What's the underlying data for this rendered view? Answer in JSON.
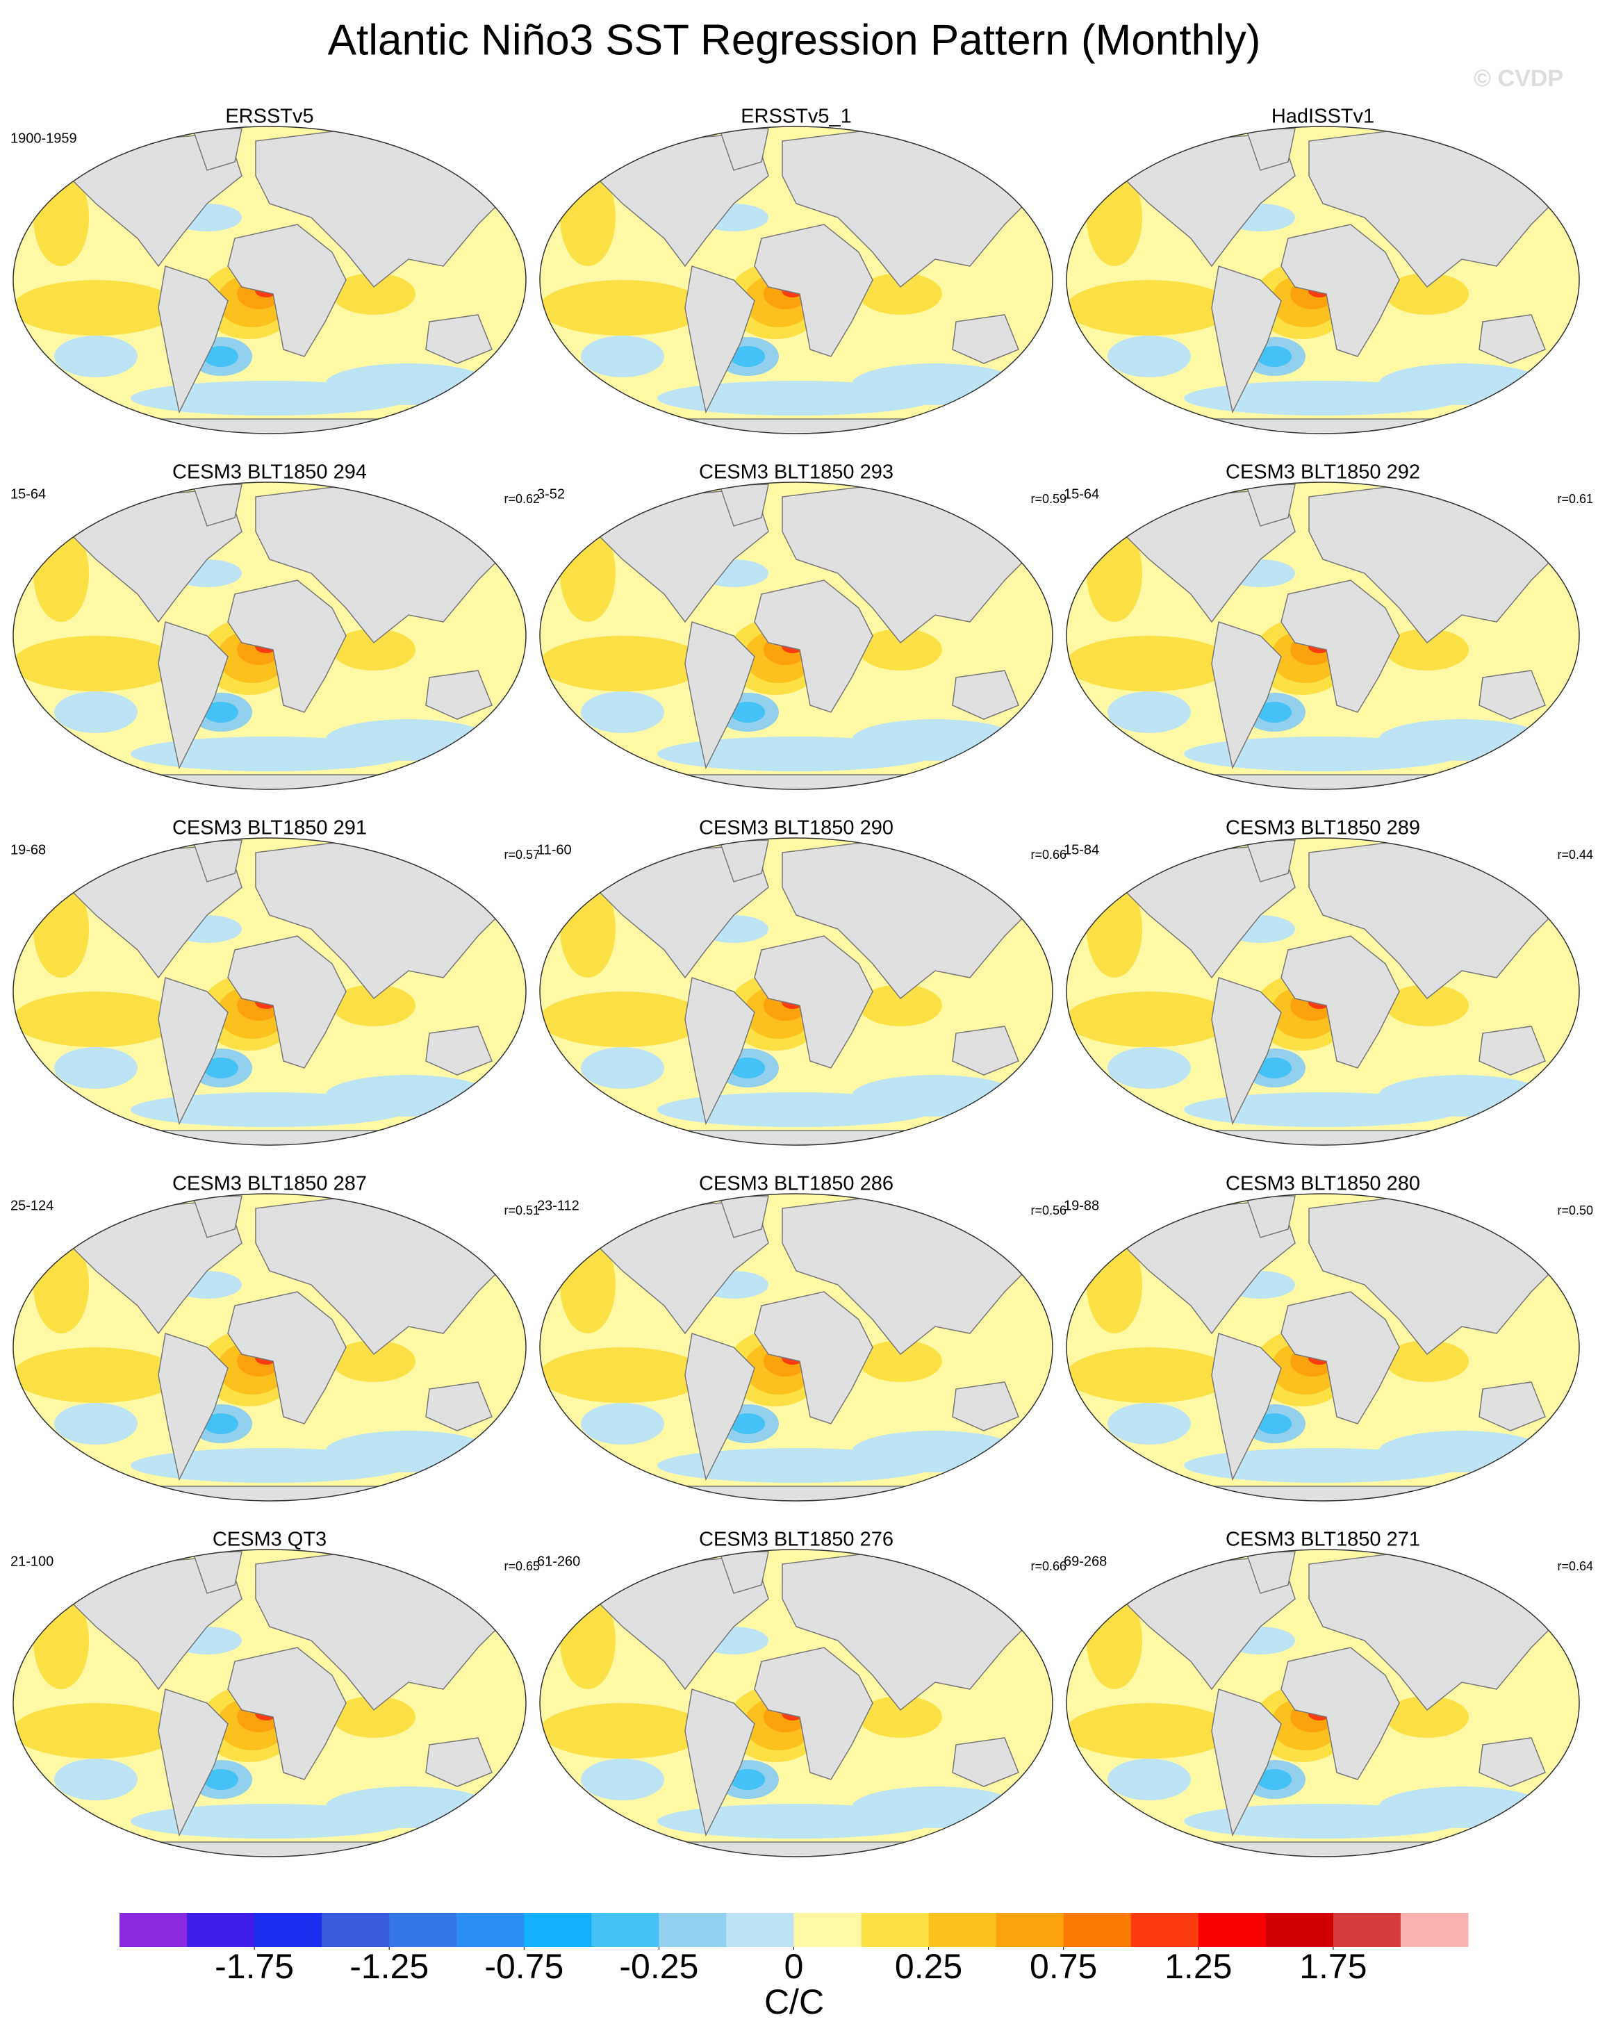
{
  "title": "Atlantic Niño3 SST Regression Pattern (Monthly)",
  "watermark": "© CVDP",
  "panels": [
    {
      "title": "ERSSTv5",
      "period": "1900-1959"
    },
    {
      "title": "ERSSTv5_1"
    },
    {
      "title": "HadISSTv1"
    },
    {
      "title": "CESM3 BLT1850 294",
      "period": "15-64",
      "r": "r=0.62"
    },
    {
      "title": "CESM3 BLT1850 293",
      "period": "3-52",
      "r": "r=0.59"
    },
    {
      "title": "CESM3 BLT1850 292",
      "period": "15-64",
      "r": "r=0.61"
    },
    {
      "title": "CESM3 BLT1850 291",
      "period": "19-68",
      "r": "r=0.57"
    },
    {
      "title": "CESM3 BLT1850 290",
      "period": "11-60",
      "r": "r=0.66"
    },
    {
      "title": "CESM3 BLT1850 289",
      "period": "15-84",
      "r": "r=0.44"
    },
    {
      "title": "CESM3 BLT1850 287",
      "period": "25-124",
      "r": "r=0.51"
    },
    {
      "title": "CESM3 BLT1850 286",
      "period": "23-112",
      "r": "r=0.56"
    },
    {
      "title": "CESM3 BLT1850 280",
      "period": "19-88",
      "r": "r=0.50"
    },
    {
      "title": "CESM3 QT3",
      "period": "21-100",
      "r": "r=0.65"
    },
    {
      "title": "CESM3 BLT1850 276",
      "period": "61-260",
      "r": "r=0.66"
    },
    {
      "title": "CESM3 BLT1850 271",
      "period": "69-268",
      "r": "r=0.64"
    }
  ],
  "colorbar": {
    "colors": [
      "#8a2be2",
      "#3f1ee8",
      "#1a2ff0",
      "#3a5ddf",
      "#3478ea",
      "#2a8ff5",
      "#12b0ff",
      "#44c2f5",
      "#92d0ee",
      "#bde4f5",
      "#fff9a6",
      "#fde046",
      "#fcc11f",
      "#fca20c",
      "#fc7a05",
      "#fa3c0e",
      "#fa0000",
      "#d10000",
      "#d43b3b",
      "#fbb1b1"
    ],
    "ticks": [
      -1.75,
      -1.25,
      -0.75,
      -0.25,
      0,
      0.25,
      0.75,
      1.25,
      1.75
    ],
    "label": "C/C"
  }
}
